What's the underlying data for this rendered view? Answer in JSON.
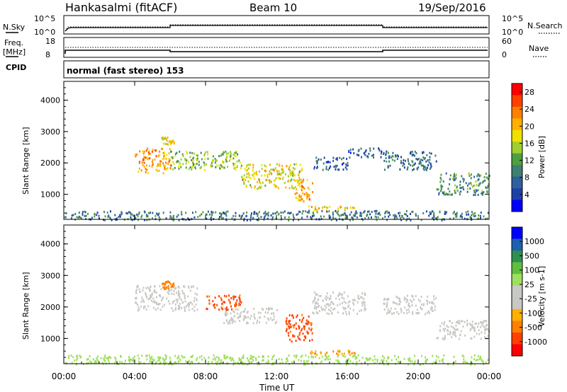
{
  "header": {
    "station": "Hankasalmi (fitACF)",
    "beam": "Beam 10",
    "date": "19/Sep/2016"
  },
  "top_panels": {
    "noise": {
      "left_label": "N.Sky",
      "right_label": "N.Search",
      "left_ticks": [
        "10^5",
        "10^0"
      ],
      "right_ticks": [
        "10^5",
        "10^0"
      ]
    },
    "freq": {
      "left_label": "Freq.",
      "left_unit": "[MHz]",
      "left_ticks": [
        "18",
        "8"
      ],
      "right_label": "Nave",
      "right_ticks": [
        "60",
        "0"
      ]
    },
    "cpid": {
      "label": "CPID",
      "text": "normal (fast stereo) 153"
    }
  },
  "colors": {
    "power_scale": [
      "#0000ff",
      "#1f3fa8",
      "#2f5f9f",
      "#3f7f6f",
      "#4f9f3f",
      "#9fcf2f",
      "#f0e000",
      "#ffb000",
      "#ff7f00",
      "#ff4000",
      "#ff0000"
    ],
    "velocity_scale": [
      "#ff0000",
      "#ff4000",
      "#ff8000",
      "#ffb000",
      "#c8c8c4",
      "#c8c8c4",
      "#9fdf5f",
      "#5fbf3f",
      "#2f8f4f",
      "#1f5faf",
      "#0000ff"
    ],
    "ground_scatter": "#c8c8c4"
  },
  "chart_data": [
    {
      "type": "heatmap",
      "name": "power",
      "xlabel": "Time UT",
      "ylabel": "Slant Range [km]",
      "colorbar_label": "Power [dB]",
      "x_ticks": [
        "00:00",
        "04:00",
        "08:00",
        "12:00",
        "16:00",
        "20:00",
        "00:00"
      ],
      "y_ticks": [
        1000,
        2000,
        3000,
        4000
      ],
      "ylim": [
        200,
        4600
      ],
      "colorbar_ticks": [
        4,
        8,
        12,
        16,
        20,
        24,
        28
      ],
      "colorbar_range": [
        0,
        30
      ],
      "features": [
        {
          "t0": 4.0,
          "t1": 6.0,
          "r0": 1700,
          "r1": 2500,
          "value": 22
        },
        {
          "t0": 5.5,
          "t1": 6.2,
          "r0": 2600,
          "r1": 2850,
          "value": 18
        },
        {
          "t0": 6.0,
          "t1": 10.0,
          "r0": 1800,
          "r1": 2400,
          "value": 14
        },
        {
          "t0": 10.0,
          "t1": 13.5,
          "r0": 1200,
          "r1": 2000,
          "value": 18
        },
        {
          "t0": 13.0,
          "t1": 14.0,
          "r0": 800,
          "r1": 1500,
          "value": 22
        },
        {
          "t0": 13.8,
          "t1": 16.5,
          "r0": 500,
          "r1": 650,
          "value": 20
        },
        {
          "t0": 14.0,
          "t1": 16.0,
          "r0": 1800,
          "r1": 2200,
          "value": 6
        },
        {
          "t0": 16.0,
          "t1": 18.0,
          "r0": 2200,
          "r1": 2500,
          "value": 6
        },
        {
          "t0": 18.0,
          "t1": 21.0,
          "r0": 1800,
          "r1": 2400,
          "value": 7
        },
        {
          "t0": 21.0,
          "t1": 24.0,
          "r0": 1000,
          "r1": 1700,
          "value": 10
        },
        {
          "t0": 0.0,
          "t1": 24.0,
          "r0": 200,
          "r1": 500,
          "value": 8
        }
      ]
    },
    {
      "type": "heatmap",
      "name": "velocity",
      "xlabel": "Time UT",
      "ylabel": "Slant Range [km]",
      "colorbar_label": "Velocity [m s-1]",
      "x_ticks": [
        "00:00",
        "04:00",
        "08:00",
        "12:00",
        "16:00",
        "20:00",
        "00:00"
      ],
      "y_ticks": [
        1000,
        2000,
        3000,
        4000
      ],
      "ylim": [
        200,
        4600
      ],
      "colorbar_ticks": [
        "1000",
        "500",
        "100",
        "25",
        "-25",
        "-100",
        "-500",
        "-1000"
      ],
      "features": [
        {
          "t0": 4.0,
          "t1": 7.5,
          "r0": 1900,
          "r1": 2700,
          "value": 0
        },
        {
          "t0": 5.5,
          "t1": 6.2,
          "r0": 2600,
          "r1": 2850,
          "value": -300
        },
        {
          "t0": 8.0,
          "t1": 10.0,
          "r0": 1900,
          "r1": 2400,
          "value": -500
        },
        {
          "t0": 9.0,
          "t1": 12.0,
          "r0": 1500,
          "r1": 2000,
          "value": 0
        },
        {
          "t0": 12.5,
          "t1": 14.0,
          "r0": 900,
          "r1": 1800,
          "value": -500
        },
        {
          "t0": 13.8,
          "t1": 16.5,
          "r0": 500,
          "r1": 650,
          "value": -150
        },
        {
          "t0": 14.0,
          "t1": 17.0,
          "r0": 1800,
          "r1": 2500,
          "value": 0
        },
        {
          "t0": 18.0,
          "t1": 21.0,
          "r0": 1800,
          "r1": 2400,
          "value": 0
        },
        {
          "t0": 21.0,
          "t1": 24.0,
          "r0": 1000,
          "r1": 1600,
          "value": 0
        },
        {
          "t0": 0.0,
          "t1": 24.0,
          "r0": 200,
          "r1": 500,
          "value": 100
        }
      ]
    }
  ]
}
